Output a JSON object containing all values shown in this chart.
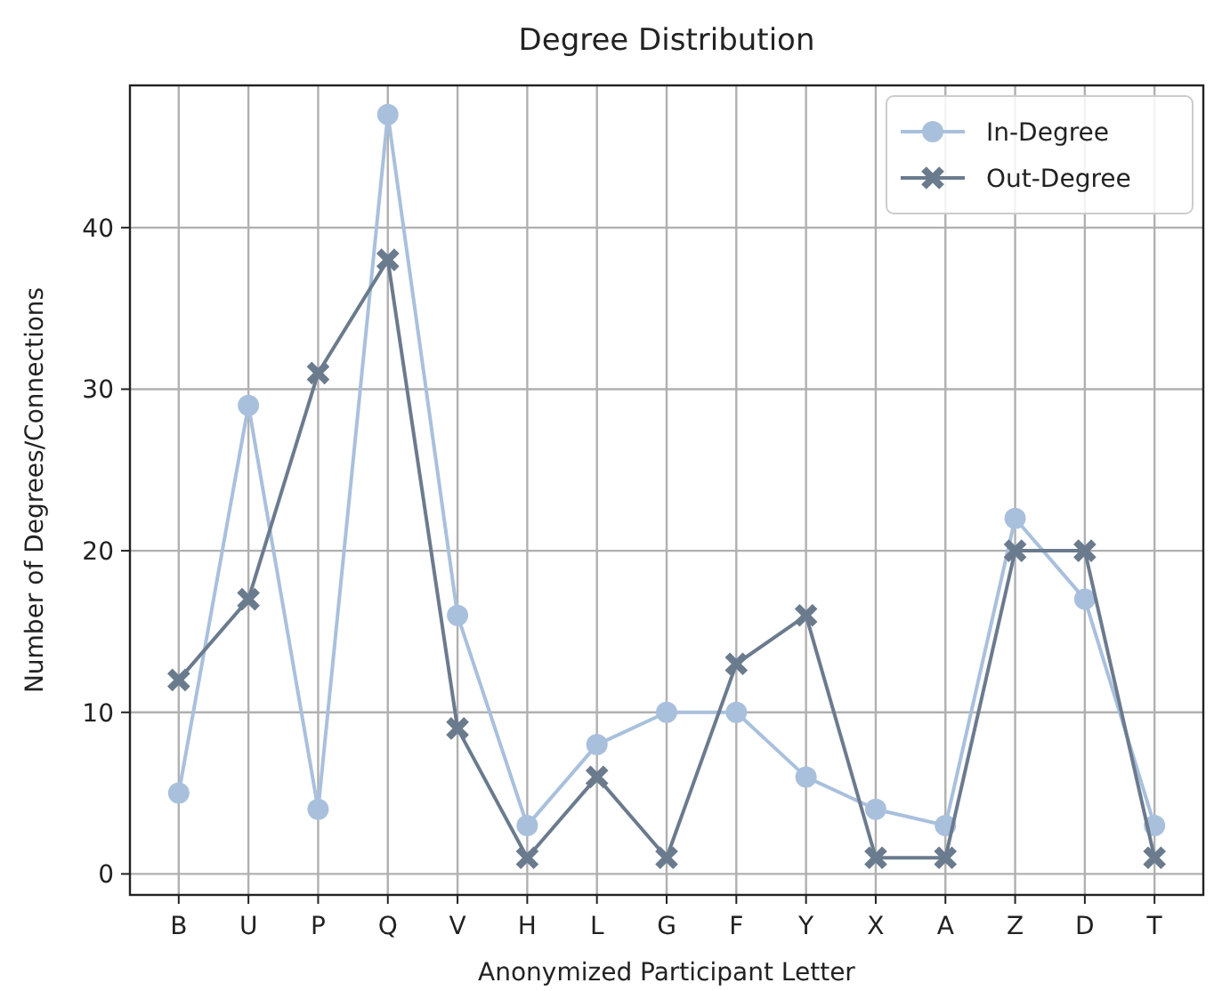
{
  "chart_data": {
    "type": "line",
    "title": "Degree Distribution",
    "xlabel": "Anonymized Participant Letter",
    "ylabel": "Number of Degrees/Connections",
    "categories": [
      "B",
      "U",
      "P",
      "Q",
      "V",
      "H",
      "L",
      "G",
      "F",
      "Y",
      "X",
      "A",
      "Z",
      "D",
      "T"
    ],
    "series": [
      {
        "name": "In-Degree",
        "color": "#a9c0dd",
        "marker": "circle",
        "values": [
          5,
          29,
          4,
          47,
          16,
          3,
          8,
          10,
          10,
          6,
          4,
          3,
          22,
          17,
          3
        ]
      },
      {
        "name": "Out-Degree",
        "color": "#6b7b8e",
        "marker": "cross",
        "values": [
          12,
          17,
          31,
          38,
          9,
          1,
          6,
          1,
          13,
          16,
          1,
          1,
          20,
          20,
          1
        ]
      }
    ],
    "ylim": [
      -1.3,
      48.8
    ],
    "yticks": [
      0,
      10,
      20,
      30,
      40
    ],
    "grid": true,
    "legend": "top right",
    "line_style": "solid"
  }
}
